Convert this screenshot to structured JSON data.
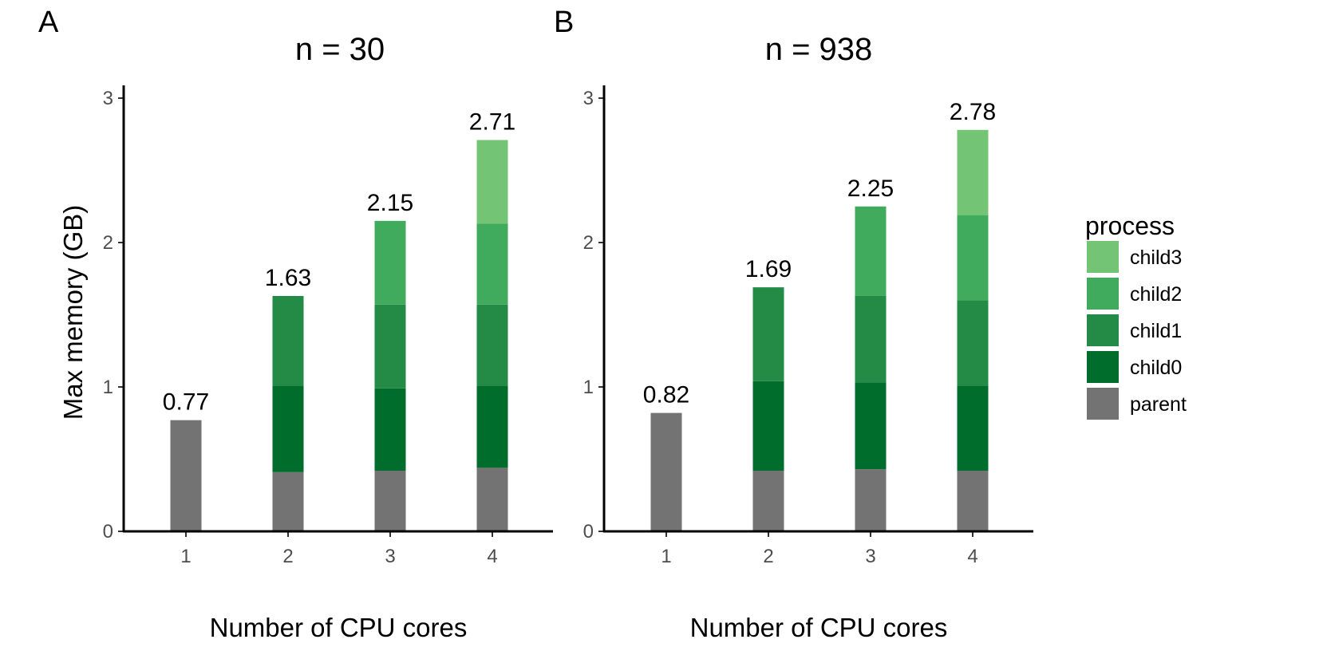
{
  "legend": {
    "title": "process",
    "items": [
      {
        "label": "child3",
        "color": "#74c476"
      },
      {
        "label": "child2",
        "color": "#41ab5d"
      },
      {
        "label": "child1",
        "color": "#238b45"
      },
      {
        "label": "child0",
        "color": "#006d2c"
      },
      {
        "label": "parent",
        "color": "#737373"
      }
    ]
  },
  "chart_data": [
    {
      "type": "bar",
      "stacked": true,
      "panel_tag": "A",
      "title": "n = 30",
      "xlabel": "Number of CPU cores",
      "ylabel": "Max memory (GB)",
      "ylim": [
        0,
        3
      ],
      "yticks": [
        0,
        1,
        2,
        3
      ],
      "categories": [
        "1",
        "2",
        "3",
        "4"
      ],
      "series": [
        {
          "name": "parent",
          "values": [
            0.77,
            0.41,
            0.42,
            0.44
          ]
        },
        {
          "name": "child0",
          "values": [
            0,
            0.6,
            0.57,
            0.57
          ]
        },
        {
          "name": "child1",
          "values": [
            0,
            0.62,
            0.58,
            0.56
          ]
        },
        {
          "name": "child2",
          "values": [
            0,
            0,
            0.58,
            0.56
          ]
        },
        {
          "name": "child3",
          "values": [
            0,
            0,
            0,
            0.58
          ]
        }
      ],
      "totals": [
        "0.77",
        "1.63",
        "2.15",
        "2.71"
      ]
    },
    {
      "type": "bar",
      "stacked": true,
      "panel_tag": "B",
      "title": "n = 938",
      "xlabel": "Number of CPU cores",
      "ylabel": "",
      "ylim": [
        0,
        3
      ],
      "yticks": [
        0,
        1,
        2,
        3
      ],
      "categories": [
        "1",
        "2",
        "3",
        "4"
      ],
      "series": [
        {
          "name": "parent",
          "values": [
            0.82,
            0.42,
            0.43,
            0.42
          ]
        },
        {
          "name": "child0",
          "values": [
            0,
            0.62,
            0.6,
            0.59
          ]
        },
        {
          "name": "child1",
          "values": [
            0,
            0.65,
            0.6,
            0.59
          ]
        },
        {
          "name": "child2",
          "values": [
            0,
            0,
            0.62,
            0.59
          ]
        },
        {
          "name": "child3",
          "values": [
            0,
            0,
            0,
            0.59
          ]
        }
      ],
      "totals": [
        "0.82",
        "1.69",
        "2.25",
        "2.78"
      ]
    }
  ]
}
